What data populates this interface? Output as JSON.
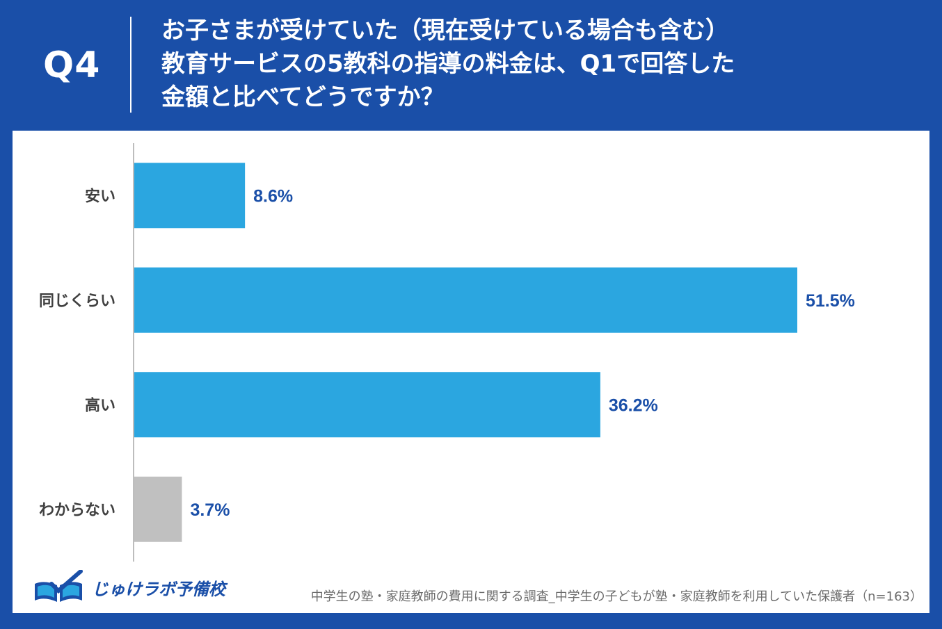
{
  "header": {
    "q_label": "Q4",
    "question_lines": [
      "お子さまが受けていた（現在受けている場合も含む）",
      "教育サービスの5教科の指導の料金は、Q1で回答した",
      "金額と比べてどうですか？"
    ]
  },
  "chart_data": {
    "type": "bar",
    "orientation": "horizontal",
    "categories": [
      "安い",
      "同じくらい",
      "高い",
      "わからない"
    ],
    "values": [
      8.6,
      51.5,
      36.2,
      3.7
    ],
    "value_labels": [
      "8.6%",
      "51.5%",
      "36.2%",
      "3.7%"
    ],
    "unit": "%",
    "xlim": [
      0,
      60
    ],
    "grid": false,
    "bar_colors": [
      "#2BA6E0",
      "#2BA6E0",
      "#2BA6E0",
      "#C0C0C0"
    ],
    "label_color": "#1A4FA8"
  },
  "footer": {
    "logo_text": "じゅけラボ予備校",
    "source": "中学生の塾・家庭教師の費用に関する調査_中学生の子どもが塾・家庭教師を利用していた保護者（n=163）"
  },
  "colors": {
    "brand": "#1A4FA8",
    "bar": "#2BA6E0",
    "bar_unknown": "#C0C0C0"
  }
}
